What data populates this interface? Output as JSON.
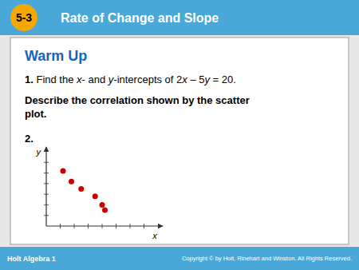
{
  "chart_data": {
    "type": "scatter",
    "x": [
      1.2,
      1.8,
      2.5,
      3.5,
      4.0,
      4.2
    ],
    "values": [
      5.2,
      4.2,
      3.5,
      2.8,
      2.0,
      1.5
    ],
    "color": "#cc0000",
    "xlim": [
      0,
      8
    ],
    "ylim": [
      0,
      7
    ],
    "xticks": [
      1,
      2,
      3,
      4,
      5,
      6,
      7
    ],
    "yticks": [
      1,
      2,
      3,
      4,
      5,
      6
    ],
    "tick_labels": false,
    "xlabel": "x",
    "ylabel": "y"
  },
  "page": {
    "header_section": "5-3",
    "header_title": "Rate of Change and Slope",
    "heading": "Warm Up",
    "problem1": [
      {
        "text": "1.",
        "bold": true
      },
      {
        "text": " Find the "
      },
      {
        "text": "x",
        "italic": true
      },
      {
        "text": "- and "
      },
      {
        "text": "y",
        "italic": true
      },
      {
        "text": "-intercepts of 2"
      },
      {
        "text": "x",
        "italic": true
      },
      {
        "text": " – 5"
      },
      {
        "text": "y",
        "italic": true
      },
      {
        "text": " = 20."
      }
    ],
    "problem2_text": "Describe the correlation shown by the scatter\nplot.",
    "problem2_label": "2.",
    "footer_left": "Holt Algebra 1",
    "footer_right": "Copyright © by Holt, Rinehart and Winston. All Rights Reserved."
  }
}
